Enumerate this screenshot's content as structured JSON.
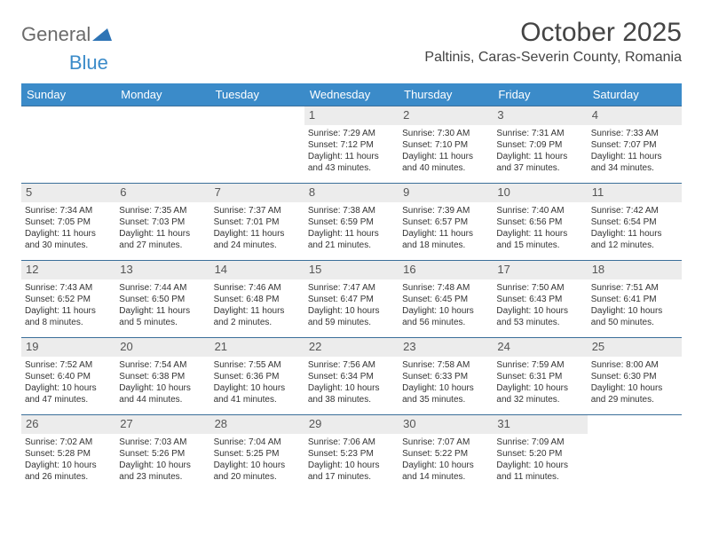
{
  "logo": {
    "general": "General",
    "blue": "Blue"
  },
  "header": {
    "month_title": "October 2025",
    "location": "Paltinis, Caras-Severin County, Romania"
  },
  "colors": {
    "header_bg": "#3b8bc9",
    "row_border": "#3b6f9a",
    "daynum_bg": "#ececec",
    "text": "#333333"
  },
  "dow": [
    "Sunday",
    "Monday",
    "Tuesday",
    "Wednesday",
    "Thursday",
    "Friday",
    "Saturday"
  ],
  "weeks": [
    [
      null,
      null,
      null,
      {
        "n": "1",
        "sr": "Sunrise: 7:29 AM",
        "ss": "Sunset: 7:12 PM",
        "d1": "Daylight: 11 hours",
        "d2": "and 43 minutes."
      },
      {
        "n": "2",
        "sr": "Sunrise: 7:30 AM",
        "ss": "Sunset: 7:10 PM",
        "d1": "Daylight: 11 hours",
        "d2": "and 40 minutes."
      },
      {
        "n": "3",
        "sr": "Sunrise: 7:31 AM",
        "ss": "Sunset: 7:09 PM",
        "d1": "Daylight: 11 hours",
        "d2": "and 37 minutes."
      },
      {
        "n": "4",
        "sr": "Sunrise: 7:33 AM",
        "ss": "Sunset: 7:07 PM",
        "d1": "Daylight: 11 hours",
        "d2": "and 34 minutes."
      }
    ],
    [
      {
        "n": "5",
        "sr": "Sunrise: 7:34 AM",
        "ss": "Sunset: 7:05 PM",
        "d1": "Daylight: 11 hours",
        "d2": "and 30 minutes."
      },
      {
        "n": "6",
        "sr": "Sunrise: 7:35 AM",
        "ss": "Sunset: 7:03 PM",
        "d1": "Daylight: 11 hours",
        "d2": "and 27 minutes."
      },
      {
        "n": "7",
        "sr": "Sunrise: 7:37 AM",
        "ss": "Sunset: 7:01 PM",
        "d1": "Daylight: 11 hours",
        "d2": "and 24 minutes."
      },
      {
        "n": "8",
        "sr": "Sunrise: 7:38 AM",
        "ss": "Sunset: 6:59 PM",
        "d1": "Daylight: 11 hours",
        "d2": "and 21 minutes."
      },
      {
        "n": "9",
        "sr": "Sunrise: 7:39 AM",
        "ss": "Sunset: 6:57 PM",
        "d1": "Daylight: 11 hours",
        "d2": "and 18 minutes."
      },
      {
        "n": "10",
        "sr": "Sunrise: 7:40 AM",
        "ss": "Sunset: 6:56 PM",
        "d1": "Daylight: 11 hours",
        "d2": "and 15 minutes."
      },
      {
        "n": "11",
        "sr": "Sunrise: 7:42 AM",
        "ss": "Sunset: 6:54 PM",
        "d1": "Daylight: 11 hours",
        "d2": "and 12 minutes."
      }
    ],
    [
      {
        "n": "12",
        "sr": "Sunrise: 7:43 AM",
        "ss": "Sunset: 6:52 PM",
        "d1": "Daylight: 11 hours",
        "d2": "and 8 minutes."
      },
      {
        "n": "13",
        "sr": "Sunrise: 7:44 AM",
        "ss": "Sunset: 6:50 PM",
        "d1": "Daylight: 11 hours",
        "d2": "and 5 minutes."
      },
      {
        "n": "14",
        "sr": "Sunrise: 7:46 AM",
        "ss": "Sunset: 6:48 PM",
        "d1": "Daylight: 11 hours",
        "d2": "and 2 minutes."
      },
      {
        "n": "15",
        "sr": "Sunrise: 7:47 AM",
        "ss": "Sunset: 6:47 PM",
        "d1": "Daylight: 10 hours",
        "d2": "and 59 minutes."
      },
      {
        "n": "16",
        "sr": "Sunrise: 7:48 AM",
        "ss": "Sunset: 6:45 PM",
        "d1": "Daylight: 10 hours",
        "d2": "and 56 minutes."
      },
      {
        "n": "17",
        "sr": "Sunrise: 7:50 AM",
        "ss": "Sunset: 6:43 PM",
        "d1": "Daylight: 10 hours",
        "d2": "and 53 minutes."
      },
      {
        "n": "18",
        "sr": "Sunrise: 7:51 AM",
        "ss": "Sunset: 6:41 PM",
        "d1": "Daylight: 10 hours",
        "d2": "and 50 minutes."
      }
    ],
    [
      {
        "n": "19",
        "sr": "Sunrise: 7:52 AM",
        "ss": "Sunset: 6:40 PM",
        "d1": "Daylight: 10 hours",
        "d2": "and 47 minutes."
      },
      {
        "n": "20",
        "sr": "Sunrise: 7:54 AM",
        "ss": "Sunset: 6:38 PM",
        "d1": "Daylight: 10 hours",
        "d2": "and 44 minutes."
      },
      {
        "n": "21",
        "sr": "Sunrise: 7:55 AM",
        "ss": "Sunset: 6:36 PM",
        "d1": "Daylight: 10 hours",
        "d2": "and 41 minutes."
      },
      {
        "n": "22",
        "sr": "Sunrise: 7:56 AM",
        "ss": "Sunset: 6:34 PM",
        "d1": "Daylight: 10 hours",
        "d2": "and 38 minutes."
      },
      {
        "n": "23",
        "sr": "Sunrise: 7:58 AM",
        "ss": "Sunset: 6:33 PM",
        "d1": "Daylight: 10 hours",
        "d2": "and 35 minutes."
      },
      {
        "n": "24",
        "sr": "Sunrise: 7:59 AM",
        "ss": "Sunset: 6:31 PM",
        "d1": "Daylight: 10 hours",
        "d2": "and 32 minutes."
      },
      {
        "n": "25",
        "sr": "Sunrise: 8:00 AM",
        "ss": "Sunset: 6:30 PM",
        "d1": "Daylight: 10 hours",
        "d2": "and 29 minutes."
      }
    ],
    [
      {
        "n": "26",
        "sr": "Sunrise: 7:02 AM",
        "ss": "Sunset: 5:28 PM",
        "d1": "Daylight: 10 hours",
        "d2": "and 26 minutes."
      },
      {
        "n": "27",
        "sr": "Sunrise: 7:03 AM",
        "ss": "Sunset: 5:26 PM",
        "d1": "Daylight: 10 hours",
        "d2": "and 23 minutes."
      },
      {
        "n": "28",
        "sr": "Sunrise: 7:04 AM",
        "ss": "Sunset: 5:25 PM",
        "d1": "Daylight: 10 hours",
        "d2": "and 20 minutes."
      },
      {
        "n": "29",
        "sr": "Sunrise: 7:06 AM",
        "ss": "Sunset: 5:23 PM",
        "d1": "Daylight: 10 hours",
        "d2": "and 17 minutes."
      },
      {
        "n": "30",
        "sr": "Sunrise: 7:07 AM",
        "ss": "Sunset: 5:22 PM",
        "d1": "Daylight: 10 hours",
        "d2": "and 14 minutes."
      },
      {
        "n": "31",
        "sr": "Sunrise: 7:09 AM",
        "ss": "Sunset: 5:20 PM",
        "d1": "Daylight: 10 hours",
        "d2": "and 11 minutes."
      },
      null
    ]
  ]
}
